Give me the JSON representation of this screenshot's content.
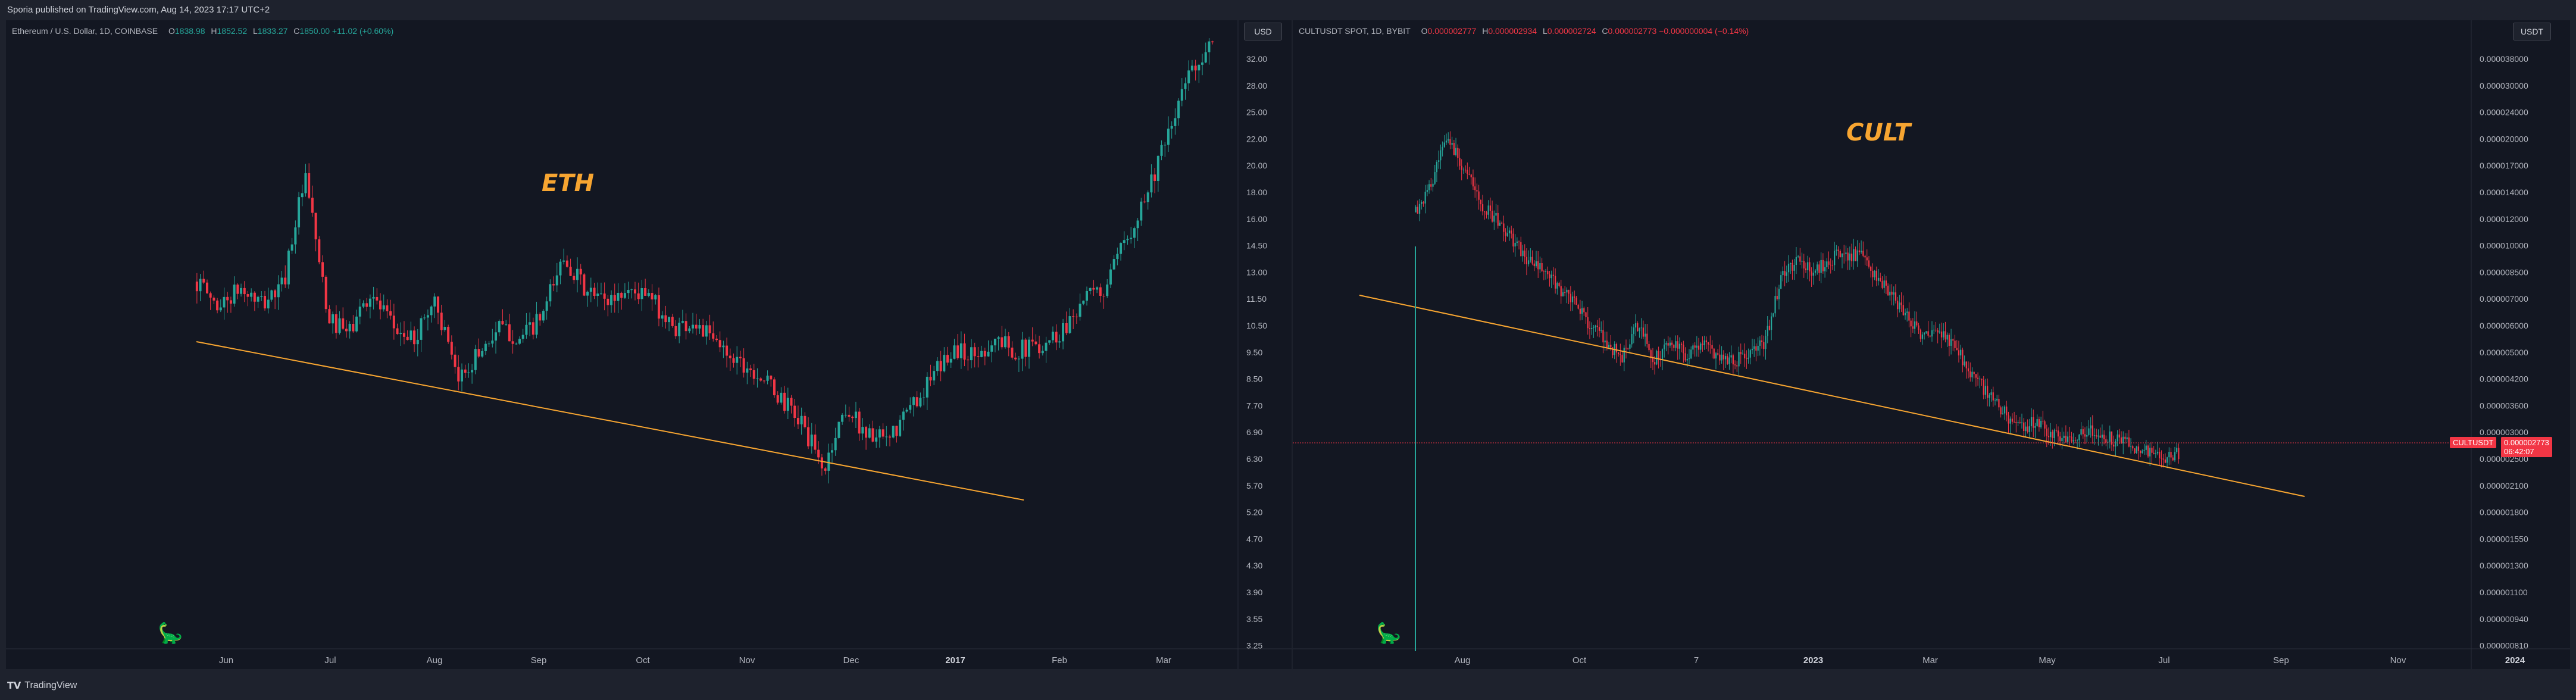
{
  "header": {
    "publish_text": "Sporia published on TradingView.com, Aug 14, 2023 17:17 UTC+2"
  },
  "footer": {
    "brand": "TradingView",
    "logo_icon": "tradingview-logo-icon"
  },
  "colors": {
    "up": "#26a69a",
    "down": "#f23645",
    "trendline": "#f7a531",
    "background": "#131722"
  },
  "eth": {
    "title": "Ethereum / U.S. Dollar, 1D, COINBASE",
    "o_label": "O",
    "o": "1838.98",
    "h_label": "H",
    "h": "1852.52",
    "l_label": "L",
    "l": "1833.27",
    "c_label": "C",
    "c": "1850.00",
    "change": "+11.02 (+0.60%)",
    "currency": "USD",
    "annotation": "ETH",
    "price_ticks": [
      "32.00",
      "28.00",
      "25.00",
      "22.00",
      "20.00",
      "18.00",
      "16.00",
      "14.50",
      "13.00",
      "11.50",
      "10.50",
      "9.50",
      "8.50",
      "7.70",
      "6.90",
      "6.30",
      "5.70",
      "5.20",
      "4.70",
      "4.30",
      "3.90",
      "3.55",
      "3.25"
    ],
    "time_ticks": [
      {
        "label": "Jun",
        "bold": false
      },
      {
        "label": "Jul",
        "bold": false
      },
      {
        "label": "Aug",
        "bold": false
      },
      {
        "label": "Sep",
        "bold": false
      },
      {
        "label": "Oct",
        "bold": false
      },
      {
        "label": "Nov",
        "bold": false
      },
      {
        "label": "Dec",
        "bold": false
      },
      {
        "label": "2017",
        "bold": true
      },
      {
        "label": "Feb",
        "bold": false
      },
      {
        "label": "Mar",
        "bold": false
      }
    ],
    "key_points": [
      13.8,
      12.5,
      13.4,
      12.6,
      13.6,
      20.6,
      12.0,
      11.2,
      13.2,
      11.6,
      10.9,
      12.9,
      9.3,
      10.4,
      11.5,
      11.0,
      12.0,
      15.3,
      13.2,
      12.8,
      13.4,
      12.9,
      11.5,
      11.8,
      10.8,
      10.2,
      9.6,
      8.7,
      7.9,
      6.5,
      8.4,
      7.6,
      7.3,
      8.4,
      9.4,
      10.6,
      10.3,
      11.0,
      10.5,
      10.8,
      11.3,
      12.9,
      13.3,
      16.2,
      19.8,
      24.5,
      32.0,
      35.0
    ]
  },
  "cult": {
    "title": "CULTUSDT SPOT, 1D, BYBIT",
    "o_label": "O",
    "o": "0.000002777",
    "h_label": "H",
    "h": "0.000002934",
    "l_label": "L",
    "l": "0.000002724",
    "c_label": "C",
    "c": "0.000002773",
    "change": "−0.000000004 (−0.14%)",
    "currency": "USDT",
    "annotation": "CULT",
    "symbol_tag": "CULTUSDT",
    "last_price": "0.000002773",
    "countdown": "06:42:07",
    "price_ticks": [
      "0.000038000",
      "0.000030000",
      "0.000024000",
      "0.000020000",
      "0.000017000",
      "0.000014000",
      "0.000012000",
      "0.000010000",
      "0.000008500",
      "0.000007000",
      "0.000006000",
      "0.000005000",
      "0.000004200",
      "0.000003600",
      "0.000003000",
      "0.000002500",
      "0.000002100",
      "0.000001800",
      "0.000001550",
      "0.000001300",
      "0.000001100",
      "0.000000940",
      "0.000000810"
    ],
    "time_ticks": [
      {
        "label": "Aug",
        "bold": false
      },
      {
        "label": "Oct",
        "bold": false
      },
      {
        "label": "7",
        "bold": false
      },
      {
        "label": "2023",
        "bold": true
      },
      {
        "label": "Mar",
        "bold": false
      },
      {
        "label": "May",
        "bold": false
      },
      {
        "label": "Jul",
        "bold": false
      },
      {
        "label": "Sep",
        "bold": false
      },
      {
        "label": "Nov",
        "bold": false
      },
      {
        "label": "2024",
        "bold": true
      }
    ],
    "key_points": [
      13.0,
      15.5,
      21.0,
      17.5,
      14.0,
      12.5,
      11.0,
      9.6,
      8.9,
      8.0,
      7.2,
      6.3,
      5.6,
      5.1,
      6.3,
      5.0,
      5.6,
      5.2,
      5.6,
      5.2,
      5.0,
      5.2,
      5.6,
      8.5,
      9.6,
      8.8,
      9.6,
      10.0,
      9.8,
      8.5,
      7.5,
      6.6,
      5.8,
      6.0,
      5.4,
      4.6,
      4.0,
      3.6,
      3.2,
      3.4,
      3.1,
      3.0,
      3.2,
      3.1,
      3.0,
      2.9,
      2.8,
      2.6,
      2.77
    ]
  }
}
